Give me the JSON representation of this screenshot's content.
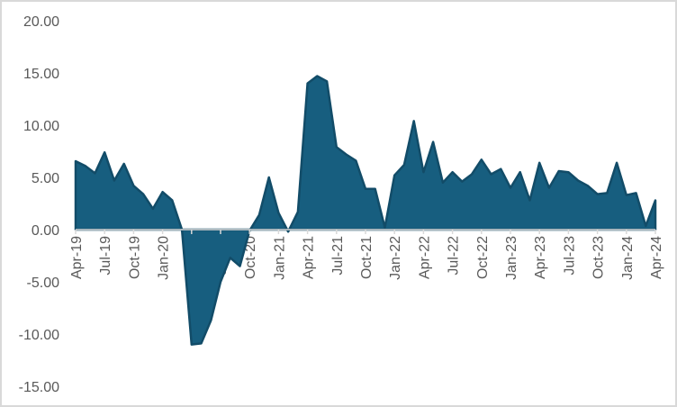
{
  "chart_data": {
    "type": "area",
    "title": "",
    "xlabel": "",
    "ylabel": "",
    "ylim": [
      -15,
      20
    ],
    "yticks": [
      "20.00",
      "15.00",
      "10.00",
      "5.00",
      "0.00",
      "-5.00",
      "-10.00",
      "-15.00"
    ],
    "ytick_values": [
      20,
      15,
      10,
      5,
      0,
      -5,
      -10,
      -15
    ],
    "xtick_labels": [
      "Apr-19",
      "Jul-19",
      "Oct-19",
      "Jan-20",
      "Apr-20",
      "Jul-20",
      "Oct-20",
      "Jan-21",
      "Apr-21",
      "Jul-21",
      "Oct-21",
      "Jan-22",
      "Apr-22",
      "Jul-22",
      "Oct-22",
      "Jan-23",
      "Apr-23",
      "Jul-23",
      "Oct-23",
      "Jan-24",
      "Apr-24"
    ],
    "grid": false,
    "legend": null,
    "colors": {
      "fill": "#175e7f",
      "stroke": "#124c68",
      "axis": "#d9d9d9",
      "tick_text": "#595959",
      "border": "#d9d9d9"
    },
    "categories": [
      "Apr-19",
      "May-19",
      "Jun-19",
      "Jul-19",
      "Aug-19",
      "Sep-19",
      "Oct-19",
      "Nov-19",
      "Dec-19",
      "Jan-20",
      "Feb-20",
      "Mar-20",
      "Apr-20",
      "May-20",
      "Jun-20",
      "Jul-20",
      "Aug-20",
      "Sep-20",
      "Oct-20",
      "Nov-20",
      "Dec-20",
      "Jan-21",
      "Feb-21",
      "Mar-21",
      "Apr-21",
      "May-21",
      "Jun-21",
      "Jul-21",
      "Aug-21",
      "Sep-21",
      "Oct-21",
      "Nov-21",
      "Dec-21",
      "Jan-22",
      "Feb-22",
      "Mar-22",
      "Apr-22",
      "May-22",
      "Jun-22",
      "Jul-22",
      "Aug-22",
      "Sep-22",
      "Oct-22",
      "Nov-22",
      "Dec-22",
      "Jan-23",
      "Feb-23",
      "Mar-23",
      "Apr-23",
      "May-23",
      "Jun-23",
      "Jul-23",
      "Aug-23",
      "Sep-23",
      "Oct-23",
      "Nov-23",
      "Dec-23",
      "Jan-24",
      "Feb-24",
      "Mar-24",
      "Apr-24"
    ],
    "values": [
      6.55,
      6.1,
      5.4,
      7.4,
      4.7,
      6.3,
      4.2,
      3.4,
      2.0,
      3.6,
      2.8,
      0.0,
      -11.0,
      -10.9,
      -8.7,
      -5.0,
      -2.7,
      -3.5,
      -0.1,
      1.4,
      5.0,
      1.6,
      -0.2,
      1.7,
      14.0,
      14.7,
      14.2,
      7.9,
      7.2,
      6.6,
      3.9,
      3.9,
      0.2,
      5.2,
      6.2,
      10.4,
      5.5,
      8.4,
      4.5,
      5.5,
      4.6,
      5.3,
      6.7,
      5.3,
      5.8,
      4.0,
      5.5,
      2.8,
      6.4,
      4.0,
      5.6,
      5.5,
      4.7,
      4.2,
      3.4,
      3.5,
      6.4,
      3.3,
      3.5,
      0.35,
      2.8
    ]
  }
}
